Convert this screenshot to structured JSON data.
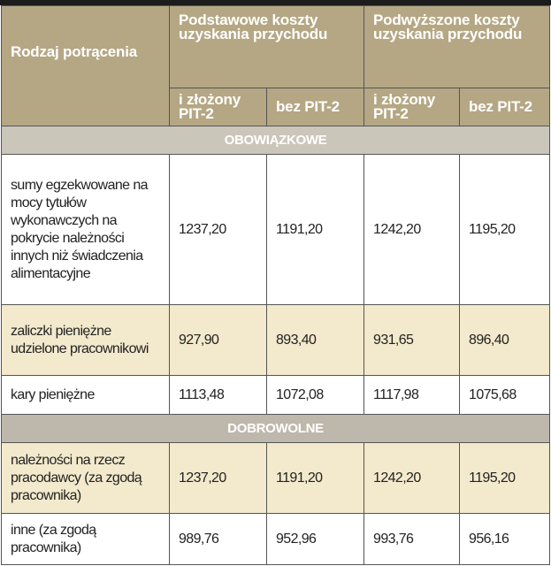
{
  "header": {
    "row_type": "Rodzaj potrącenia",
    "groups": [
      "Podstawowe koszty uzyskania przychodu",
      "Podwyższone koszty uzyskania przychodu"
    ],
    "subcolumns": [
      "i złożony PIT-2",
      "bez PIT-2",
      "i złożony PIT-2",
      "bez PIT-2"
    ]
  },
  "sections": [
    {
      "title": "OBOWIĄZKOWE",
      "rows": [
        {
          "label": "sumy egzekwowane na mocy tytułów wykonawczych na pokrycie należności innych niż świadczenia alimentacyjne",
          "values": [
            "1237,20",
            "1191,20",
            "1242,20",
            "1195,20"
          ]
        },
        {
          "label": "zaliczki pieniężne udzielone pracownikowi",
          "values": [
            "927,90",
            "893,40",
            "931,65",
            "896,40"
          ]
        },
        {
          "label": "kary pieniężne",
          "values": [
            "1113,48",
            "1072,08",
            "1117,98",
            "1075,68"
          ]
        }
      ]
    },
    {
      "title": "DOBROWOLNE",
      "rows": [
        {
          "label": "należności na rzecz pracodawcy (za zgodą pracownika)",
          "values": [
            "1237,20",
            "1191,20",
            "1242,20",
            "1195,20"
          ]
        },
        {
          "label": "inne (za zgodą pracownika)",
          "values": [
            "989,76",
            "952,96",
            "993,76",
            "956,16"
          ]
        }
      ]
    }
  ],
  "colors": {
    "header": "#b5a784",
    "highlight_row": "#f3e9cc",
    "section_band": "#cbc6ba"
  }
}
